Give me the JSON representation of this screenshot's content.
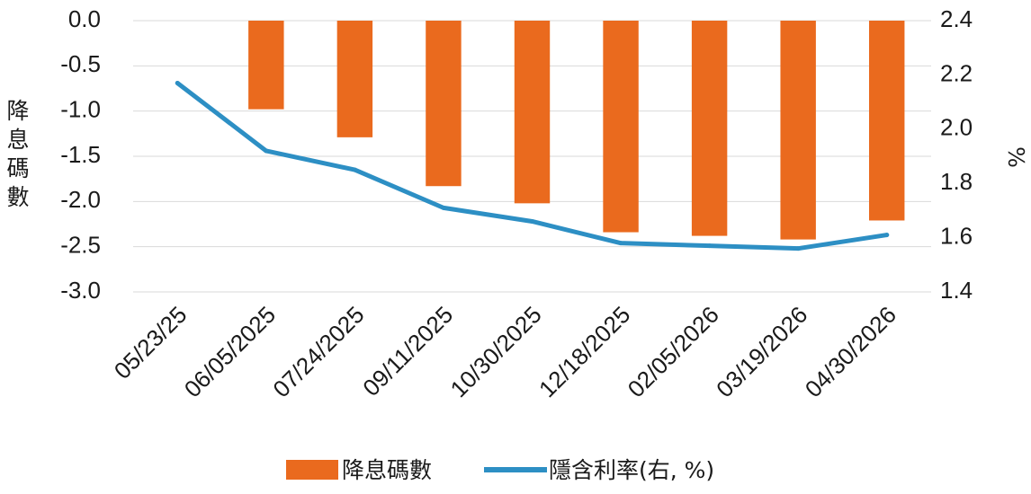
{
  "chart_data": {
    "type": "bar+line",
    "categories": [
      "05/23/25",
      "06/05/2025",
      "07/24/2025",
      "09/11/2025",
      "10/30/2025",
      "12/18/2025",
      "02/05/2026",
      "03/19/2026",
      "04/30/2026"
    ],
    "series": [
      {
        "name": "降息碼數",
        "type": "bar",
        "axis": "left",
        "color": "#ea6a1e",
        "values": [
          null,
          -0.98,
          -1.29,
          -1.83,
          -2.02,
          -2.34,
          -2.38,
          -2.42,
          -2.21
        ]
      },
      {
        "name": "隱含利率(右, %)",
        "type": "line",
        "axis": "right",
        "color": "#2d8fc4",
        "values": [
          2.17,
          1.92,
          1.85,
          1.71,
          1.66,
          1.58,
          1.57,
          1.56,
          1.61
        ]
      }
    ],
    "y_left": {
      "label": "降息碼數",
      "lim": [
        -3.0,
        0.0
      ],
      "ticks": [
        "0.0",
        "-0.5",
        "-1.0",
        "-1.5",
        "-2.0",
        "-2.5",
        "-3.0"
      ]
    },
    "y_right": {
      "label": "%",
      "lim": [
        1.4,
        2.4
      ],
      "ticks": [
        "2.4",
        "2.2",
        "2.0",
        "1.8",
        "1.6",
        "1.4"
      ]
    },
    "grid": true,
    "legend_position": "bottom",
    "legend": [
      "降息碼數",
      "隱含利率(右, %)"
    ]
  }
}
